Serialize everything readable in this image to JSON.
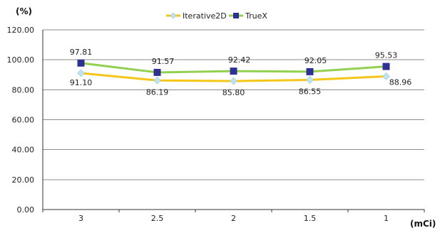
{
  "chart_data": {
    "type": "line",
    "title": "",
    "xlabel": "(mCi)",
    "ylabel": "(%)",
    "categories": [
      "3",
      "2.5",
      "2",
      "1.5",
      "1"
    ],
    "ylim": [
      0,
      120
    ],
    "y_ticks": [
      "0.00",
      "20.00",
      "40.00",
      "60.00",
      "80.00",
      "100.00",
      "120.00"
    ],
    "grid": true,
    "legend_position": "top-center",
    "series": [
      {
        "name": "Iterative2D",
        "values": [
          91.1,
          86.19,
          85.8,
          86.55,
          88.96
        ],
        "value_labels": [
          "91.10",
          "86.19",
          "85.80",
          "86.55",
          "88.96"
        ],
        "line_color": "#f5c518",
        "marker_color": "#bfe3ec",
        "marker": "diamond"
      },
      {
        "name": "TrueX",
        "values": [
          97.81,
          91.57,
          92.42,
          92.05,
          95.53
        ],
        "value_labels": [
          "97.81",
          "91.57",
          "92.42",
          "92.05",
          "95.53"
        ],
        "line_color": "#92d050",
        "marker_color": "#2e3192",
        "marker": "square"
      }
    ]
  }
}
